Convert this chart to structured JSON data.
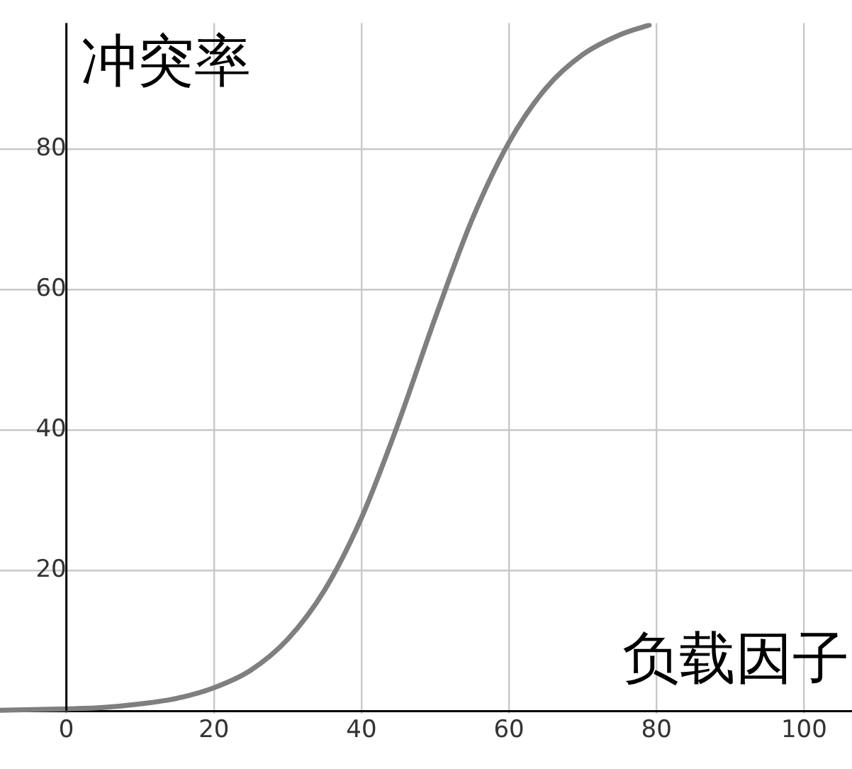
{
  "chart_data": {
    "type": "line",
    "xlabel": "负载因子",
    "ylabel": "冲突率",
    "x": [
      -9,
      0,
      5,
      10,
      15,
      20,
      25,
      30,
      35,
      40,
      45,
      50,
      55,
      60,
      65,
      70,
      75,
      79
    ],
    "series": [
      {
        "color": "#7f7f7f",
        "values": [
          0.1,
          0.3,
          0.5,
          1,
          1.8,
          3.3,
          5.8,
          10.2,
          17.2,
          27.5,
          41,
          56,
          70,
          81,
          88.7,
          93.5,
          96.3,
          97.7
        ]
      }
    ],
    "xlim": [
      -9,
      106.5
    ],
    "ylim": [
      -5,
      98
    ],
    "xticks": [
      0,
      20,
      40,
      60,
      80,
      100
    ],
    "yticks": [
      20,
      40,
      60,
      80
    ],
    "grid": true,
    "legend": false,
    "marker": "none",
    "line_style": "solid"
  }
}
